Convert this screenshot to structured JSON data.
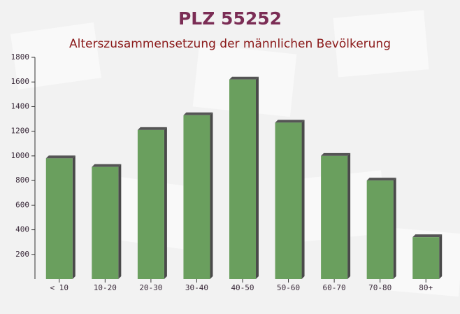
{
  "chart_data": {
    "type": "bar",
    "title": "PLZ 55252",
    "subtitle": "Alterszusammensetzung der männlichen Bevölkerung",
    "categories": [
      "< 10",
      "10-20",
      "20-30",
      "30-40",
      "40-50",
      "50-60",
      "60-70",
      "70-80",
      "80+"
    ],
    "values": [
      980,
      910,
      1210,
      1330,
      1620,
      1270,
      1000,
      800,
      340
    ],
    "color": "#6a9f5e",
    "ylim": [
      0,
      1800
    ],
    "yticks": [
      200,
      400,
      600,
      800,
      1000,
      1200,
      1400,
      1600,
      1800
    ]
  }
}
